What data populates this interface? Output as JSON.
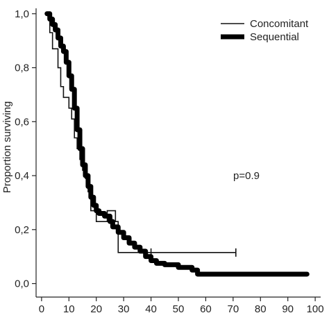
{
  "chart_data": {
    "type": "line",
    "title": "",
    "xlabel": "",
    "ylabel": "Proportion surviving",
    "xlim": [
      -2,
      102
    ],
    "ylim": [
      -0.05,
      1.02
    ],
    "xticks": [
      0,
      10,
      20,
      30,
      40,
      50,
      60,
      70,
      80,
      90,
      100
    ],
    "xtick_labels": [
      "0",
      "10",
      "20",
      "30",
      "40",
      "50",
      "60",
      "70",
      "80",
      "90",
      "100"
    ],
    "yticks": [
      0,
      0.2,
      0.4,
      0.6,
      0.8,
      1.0
    ],
    "ytick_labels": [
      "0,0",
      "0,2",
      "0,4",
      "0,6",
      "0,8",
      "1,0"
    ],
    "grid": false,
    "legend_position": "top-right",
    "annotation": "p=0.9",
    "series": [
      {
        "name": "Concomitant",
        "style": "thin",
        "color": "#111111",
        "steps": [
          [
            2,
            1.0
          ],
          [
            3,
            0.93
          ],
          [
            4,
            0.87
          ],
          [
            6,
            0.8
          ],
          [
            7,
            0.73
          ],
          [
            8,
            0.69
          ],
          [
            10,
            0.65
          ],
          [
            11,
            0.61
          ],
          [
            12,
            0.54
          ],
          [
            13,
            0.5
          ],
          [
            14,
            0.46
          ],
          [
            15,
            0.42
          ],
          [
            16,
            0.39
          ],
          [
            17,
            0.34
          ],
          [
            18,
            0.27
          ],
          [
            20,
            0.23
          ],
          [
            24,
            0.27
          ],
          [
            27,
            0.23
          ],
          [
            28,
            0.115
          ],
          [
            71,
            0.115
          ]
        ],
        "censor_marks": [
          [
            40,
            0.115
          ],
          [
            71,
            0.115
          ]
        ]
      },
      {
        "name": "Sequential",
        "style": "thick",
        "color": "#000000",
        "steps": [
          [
            2,
            1.0
          ],
          [
            3,
            0.98
          ],
          [
            4,
            0.96
          ],
          [
            5,
            0.94
          ],
          [
            6,
            0.91
          ],
          [
            7,
            0.88
          ],
          [
            8,
            0.86
          ],
          [
            9,
            0.82
          ],
          [
            10,
            0.77
          ],
          [
            11,
            0.72
          ],
          [
            12,
            0.65
          ],
          [
            13,
            0.57
          ],
          [
            14,
            0.5
          ],
          [
            15,
            0.44
          ],
          [
            16,
            0.4
          ],
          [
            17,
            0.36
          ],
          [
            18,
            0.32
          ],
          [
            19,
            0.29
          ],
          [
            20,
            0.27
          ],
          [
            21,
            0.26
          ],
          [
            23,
            0.25
          ],
          [
            25,
            0.23
          ],
          [
            26,
            0.21
          ],
          [
            28,
            0.19
          ],
          [
            30,
            0.17
          ],
          [
            32,
            0.15
          ],
          [
            34,
            0.135
          ],
          [
            36,
            0.12
          ],
          [
            38,
            0.1
          ],
          [
            40,
            0.085
          ],
          [
            42,
            0.075
          ],
          [
            45,
            0.07
          ],
          [
            50,
            0.06
          ],
          [
            55,
            0.05
          ],
          [
            57,
            0.035
          ],
          [
            97,
            0.035
          ]
        ]
      }
    ]
  }
}
